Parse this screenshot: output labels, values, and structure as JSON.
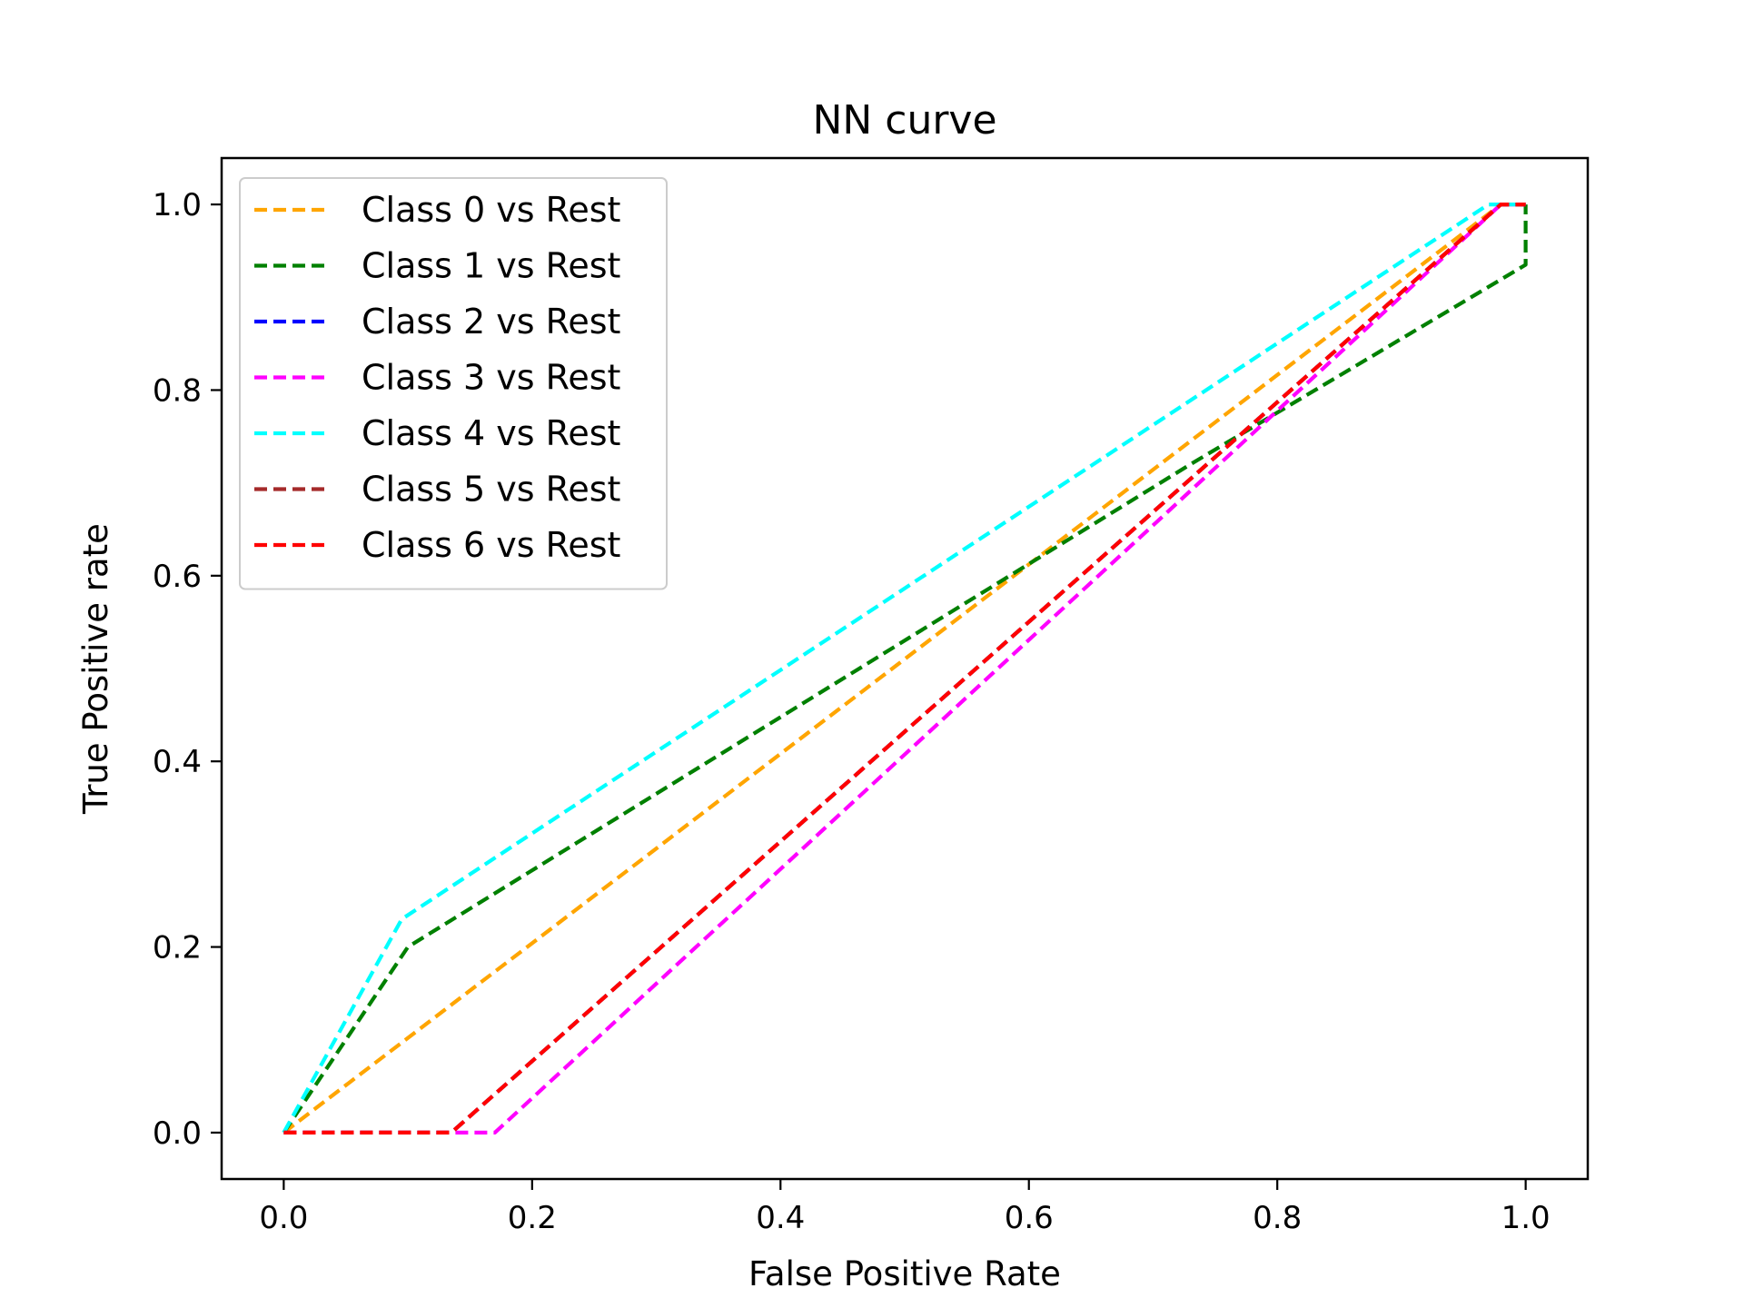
{
  "chart_data": {
    "type": "line",
    "title": "NN curve",
    "xlabel": "False Positive Rate",
    "ylabel": "True Positive rate",
    "xlim": [
      -0.05,
      1.05
    ],
    "ylim": [
      -0.05,
      1.05
    ],
    "xticks": [
      0.0,
      0.2,
      0.4,
      0.6,
      0.8,
      1.0
    ],
    "yticks": [
      0.0,
      0.2,
      0.4,
      0.6,
      0.8,
      1.0
    ],
    "xtick_labels": [
      "0.0",
      "0.2",
      "0.4",
      "0.6",
      "0.8",
      "1.0"
    ],
    "ytick_labels": [
      "0.0",
      "0.2",
      "0.4",
      "0.6",
      "0.8",
      "1.0"
    ],
    "grid": false,
    "legend_position": "top-left",
    "line_style": "dashed",
    "series": [
      {
        "name": "Class 0 vs Rest",
        "color": "#ffa500",
        "x": [
          0.0,
          0.98,
          1.0
        ],
        "y": [
          0.0,
          1.0,
          1.0
        ]
      },
      {
        "name": "Class 1 vs Rest",
        "color": "#008000",
        "x": [
          0.0,
          0.1,
          0.73,
          1.0,
          1.0
        ],
        "y": [
          0.0,
          0.2,
          0.72,
          0.935,
          1.0
        ]
      },
      {
        "name": "Class 2 vs Rest",
        "color": "#0000ff",
        "x": [
          0.0,
          0.135,
          0.98,
          1.0
        ],
        "y": [
          0.0,
          0.0,
          1.0,
          1.0
        ]
      },
      {
        "name": "Class 3 vs Rest",
        "color": "#ff00ff",
        "x": [
          0.0,
          0.17,
          0.98,
          1.0
        ],
        "y": [
          0.0,
          0.0,
          1.0,
          1.0
        ]
      },
      {
        "name": "Class 4 vs Rest",
        "color": "#00ffff",
        "x": [
          0.0,
          0.095,
          0.97,
          1.0
        ],
        "y": [
          0.0,
          0.23,
          1.0,
          1.0
        ]
      },
      {
        "name": "Class 5 vs Rest",
        "color": "#a52a2a",
        "x": [
          0.0,
          0.135,
          0.98,
          1.0
        ],
        "y": [
          0.0,
          0.0,
          1.0,
          1.0
        ]
      },
      {
        "name": "Class 6 vs Rest",
        "color": "#ff0000",
        "x": [
          0.0,
          0.135,
          0.98,
          1.0
        ],
        "y": [
          0.0,
          0.0,
          1.0,
          1.0
        ]
      }
    ]
  }
}
